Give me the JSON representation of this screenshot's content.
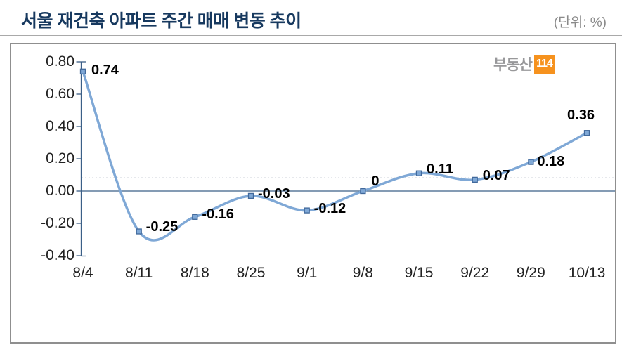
{
  "header": {
    "title": "서울 재건축 아파트 주간 매매 변동 추이",
    "unit": "(단위: %)"
  },
  "watermark": {
    "brand": "부동산",
    "badge": "114"
  },
  "decor": {
    "left_fragment": ")"
  },
  "colors": {
    "title_navy": "#17395f",
    "line_blue": "#7fa8d6",
    "marker_fill": "#7fa8d6",
    "marker_stroke": "#41699c",
    "axis": "#3b5f87",
    "badge_orange": "#f6921e",
    "brand_gray": "#98989a"
  },
  "chart_data": {
    "type": "line",
    "title": "서울 재건축 아파트 주간 매매 변동 추이",
    "unit": "%",
    "categories": [
      "8/4",
      "8/11",
      "8/18",
      "8/25",
      "9/1",
      "9/8",
      "9/15",
      "9/22",
      "9/29",
      "10/13"
    ],
    "values": [
      0.74,
      -0.25,
      -0.16,
      -0.03,
      -0.12,
      0,
      0.11,
      0.07,
      0.18,
      0.36
    ],
    "point_labels": [
      "0.74",
      "-0.25",
      "-0.16",
      "-0.03",
      "-0.12",
      "0",
      "0.11",
      "0.07",
      "0.18",
      "0.36"
    ],
    "ytick_labels": [
      "0.80",
      "0.60",
      "0.40",
      "0.20",
      "0.00",
      "-0.20",
      "-0.40"
    ],
    "ylim": [
      -0.4,
      0.8
    ],
    "grid": "none",
    "legend": "none",
    "line_smooth": true
  }
}
